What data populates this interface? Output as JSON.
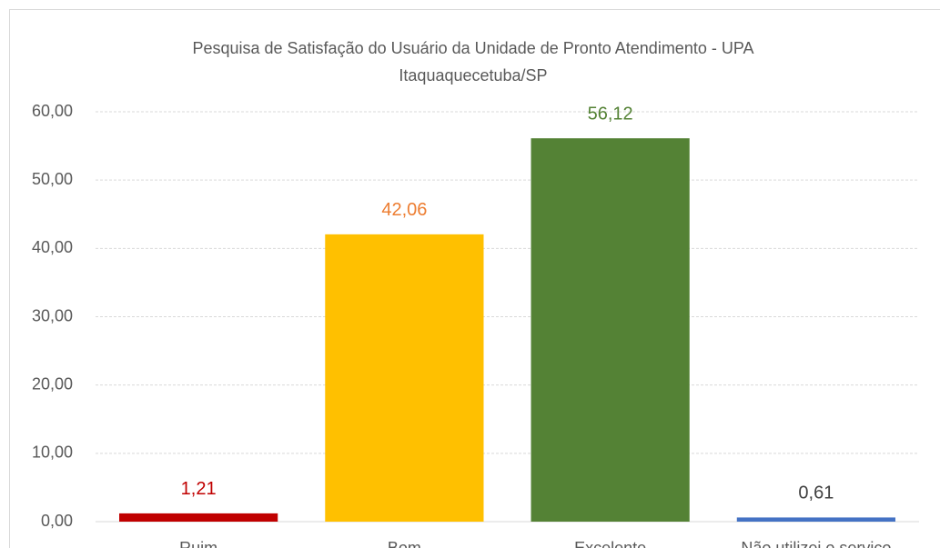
{
  "chart_data": {
    "type": "bar",
    "title": "Pesquisa de Satisfação do Usuário da Unidade de Pronto Atendimento - UPA Itaquaquecetuba/SP",
    "categories": [
      "Ruim",
      "Bom",
      "Excelente",
      "Não utilizei o serviço"
    ],
    "values": [
      1.21,
      42.06,
      56.12,
      0.61
    ],
    "value_labels": [
      "1,21",
      "42,06",
      "56,12",
      "0,61"
    ],
    "colors": [
      "#c00000",
      "#ffc000",
      "#548235",
      "#4472c4"
    ],
    "value_label_colors": [
      "#c00000",
      "#ed7d31",
      "#548235",
      "#404040"
    ],
    "ylim": [
      0,
      60
    ],
    "yticks": [
      {
        "value": 0,
        "label": "0,00"
      },
      {
        "value": 10,
        "label": "10,00"
      },
      {
        "value": 20,
        "label": "20,00"
      },
      {
        "value": 30,
        "label": "30,00"
      },
      {
        "value": 40,
        "label": "40,00"
      },
      {
        "value": 50,
        "label": "50,00"
      },
      {
        "value": 60,
        "label": "60,00"
      }
    ],
    "grid": true
  }
}
